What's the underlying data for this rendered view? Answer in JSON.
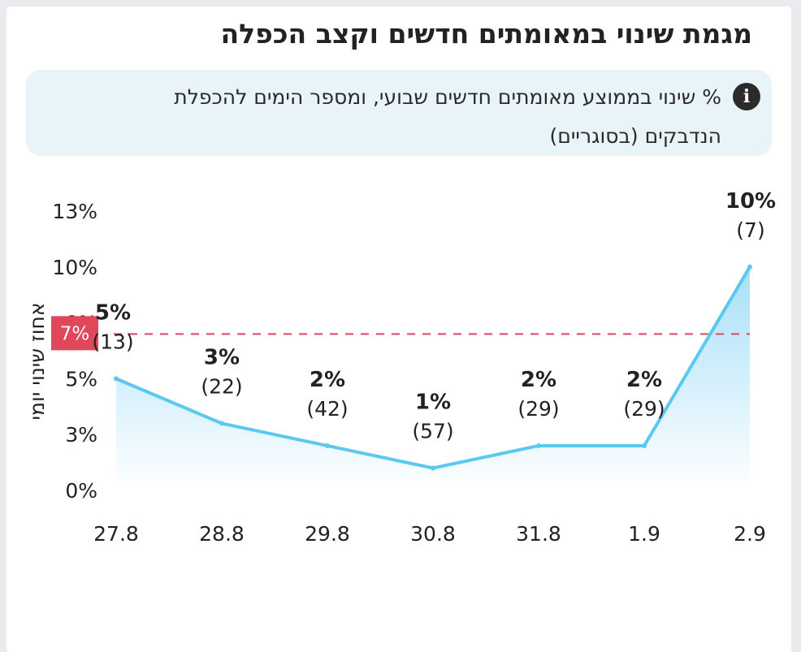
{
  "title": "מגמת שינוי במאומתים חדשים וקצב הכפלה",
  "info_text": "% שינוי בממוצע מאומתים חדשים שבועי, ומספר הימים להכפלת הנדבקים (בסוגריים)",
  "info_icon": "info-icon",
  "colors": {
    "line": "#5bc8ef",
    "area_top": "#a7e0f8",
    "area_bottom": "#ffffff",
    "threshold": "#e0475a"
  },
  "chart_data": {
    "type": "area",
    "x": [
      "27.8",
      "28.8",
      "29.8",
      "30.8",
      "31.8",
      "1.9",
      "2.9"
    ],
    "values": [
      5,
      3,
      2,
      1,
      2,
      2,
      10
    ],
    "value_labels": [
      "5%",
      "3%",
      "2%",
      "1%",
      "2%",
      "2%",
      "10%"
    ],
    "doubling_labels": [
      "(13)",
      "(22)",
      "(42)",
      "(57)",
      "(29)",
      "(29)",
      "(7)"
    ],
    "ylabel": "אחוז שינוי יומי",
    "yticks": [
      "0%",
      "3%",
      "5%",
      "8%",
      "10%",
      "13%"
    ],
    "ylim": [
      0,
      12.5
    ],
    "threshold": {
      "value": 7,
      "label": "7%"
    },
    "grid": false
  }
}
